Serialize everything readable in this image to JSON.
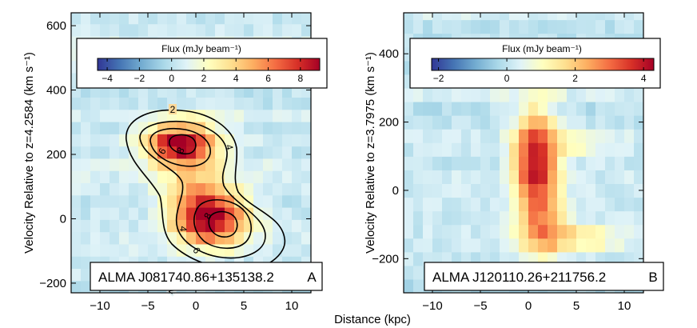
{
  "figure": {
    "shared_xlabel": "Distance (kpc)"
  },
  "chart_data": [
    {
      "type": "heatmap",
      "panel_letter": "A",
      "source_label": "ALMA J081740.86+135138.2",
      "xlabel": "Distance (kpc)",
      "ylabel": "Velocity Relative to z=4.2584 (km s⁻¹)",
      "xlim": [
        -13,
        12
      ],
      "ylim": [
        -230,
        640
      ],
      "xticks": [
        -10,
        -5,
        0,
        5,
        10
      ],
      "yticks": [
        -200,
        0,
        200,
        400,
        600
      ],
      "colorbar": {
        "title": "Flux (mJy beam⁻¹)",
        "min": -4.6,
        "max": 9.2,
        "ticks": [
          -4,
          -2,
          0,
          2,
          4,
          6,
          8
        ]
      },
      "contour_levels": [
        2,
        4,
        6,
        8
      ],
      "contour_labels": [
        "2",
        "4",
        "6",
        "8"
      ],
      "pixel": {
        "dx": 1.0,
        "dv": 38
      },
      "background_flux": 0.4,
      "noise_amplitude": 1.1,
      "components": [
        {
          "x0": -1.8,
          "v0": 235,
          "sx": 2.5,
          "sv": 42,
          "amp": 8.2
        },
        {
          "x0": 1.7,
          "v0": 5,
          "sx": 2.6,
          "sv": 55,
          "amp": 8.6
        },
        {
          "x0": -0.2,
          "v0": 120,
          "sx": 2.4,
          "sv": 110,
          "amp": 3.0
        }
      ]
    },
    {
      "type": "heatmap",
      "panel_letter": "B",
      "source_label": "ALMA J120110.26+211756.2",
      "xlabel": "Distance (kpc)",
      "ylabel": "Velocity Relative to z=3.7975 (km s⁻¹)",
      "xlim": [
        -13,
        12
      ],
      "ylim": [
        -300,
        520
      ],
      "xticks": [
        -10,
        -5,
        0,
        5,
        10
      ],
      "yticks": [
        -200,
        0,
        200,
        400
      ],
      "colorbar": {
        "title": "Flux (mJy beam⁻¹)",
        "min": -2.2,
        "max": 4.3,
        "ticks": [
          -2,
          0,
          2,
          4
        ]
      },
      "pixel": {
        "dx": 1.0,
        "dv": 40
      },
      "background_flux": 0.1,
      "noise_amplitude": 0.5,
      "components": [
        {
          "x0": 0.8,
          "v0": 80,
          "sx": 1.6,
          "sv": 110,
          "amp": 4.0
        },
        {
          "x0": 1.5,
          "v0": -120,
          "sx": 1.8,
          "sv": 60,
          "amp": 1.8
        },
        {
          "x0": 5.5,
          "v0": -140,
          "sx": 3.0,
          "sv": 25,
          "amp": 1.4
        },
        {
          "x0": 5.0,
          "v0": 140,
          "sx": 2.6,
          "sv": 30,
          "amp": 1.0
        }
      ]
    }
  ]
}
